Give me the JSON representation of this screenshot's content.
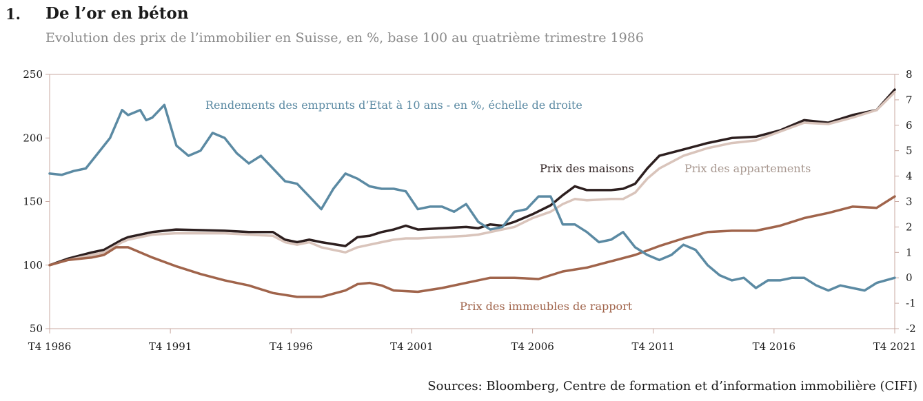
{
  "header": {
    "number": "1.",
    "title": "De l’or en béton",
    "subtitle": "Evolution des prix de l’immobilier en Suisse, en %, base 100 au quatrième trimestre 1986"
  },
  "source": "Sources: Bloomberg, Centre de formation et d’information immobilière (CIFI)",
  "chart_data": {
    "type": "line",
    "title": "De l’or en béton",
    "subtitle": "Evolution des prix de l’immobilier en Suisse, en %, base 100 au quatrième trimestre 1986",
    "x_ticks": [
      "T4 1986",
      "T4 1991",
      "T4 1996",
      "T4 2001",
      "T4 2006",
      "T4 2011",
      "T4 2016",
      "T4 2021"
    ],
    "x_range": [
      1986.75,
      2021.75
    ],
    "ylim_left": [
      50,
      250
    ],
    "yticks_left": [
      50,
      100,
      150,
      200,
      250
    ],
    "ylim_right": [
      -2,
      8
    ],
    "yticks_right": [
      -2,
      -1,
      0,
      1,
      2,
      3,
      4,
      5,
      6,
      7,
      8
    ],
    "grid": false,
    "series": [
      {
        "name": "Prix des maisons",
        "axis": "left",
        "color": "#2d1f1f",
        "x": [
          1986.75,
          1987.5,
          1988.5,
          1989.0,
          1989.75,
          1990.0,
          1991.0,
          1992.0,
          1994.0,
          1995.0,
          1996.0,
          1996.5,
          1997.0,
          1997.5,
          1998.0,
          1999.0,
          1999.5,
          2000.0,
          2000.5,
          2001.0,
          2001.5,
          2002.0,
          2003.0,
          2004.0,
          2004.5,
          2005.0,
          2005.5,
          2006.0,
          2006.75,
          2007.5,
          2008.0,
          2008.5,
          2009.0,
          2010.0,
          2010.5,
          2011.0,
          2011.5,
          2012.0,
          2013.0,
          2014.0,
          2015.0,
          2016.0,
          2017.0,
          2018.0,
          2019.0,
          2020.0,
          2021.0,
          2021.75
        ],
        "values": [
          100,
          105,
          110,
          112,
          120,
          122,
          126,
          128,
          127,
          126,
          126,
          120,
          118,
          120,
          118,
          115,
          122,
          123,
          126,
          128,
          131,
          128,
          129,
          130,
          129,
          132,
          131,
          134,
          140,
          147,
          155,
          162,
          159,
          159,
          160,
          164,
          176,
          186,
          191,
          196,
          200,
          201,
          206,
          214,
          212,
          218,
          222,
          238
        ]
      },
      {
        "name": "Prix des appartements",
        "axis": "left",
        "color": "#d9c4bb",
        "x": [
          1986.75,
          1987.5,
          1988.5,
          1989.0,
          1989.75,
          1990.0,
          1991.0,
          1992.0,
          1994.0,
          1995.0,
          1996.0,
          1996.5,
          1997.0,
          1997.5,
          1998.0,
          1999.0,
          1999.5,
          2000.0,
          2000.5,
          2001.0,
          2001.5,
          2002.0,
          2003.0,
          2004.0,
          2004.5,
          2005.0,
          2005.5,
          2006.0,
          2006.75,
          2007.5,
          2008.0,
          2008.5,
          2009.0,
          2010.0,
          2010.5,
          2011.0,
          2011.5,
          2012.0,
          2013.0,
          2014.0,
          2015.0,
          2016.0,
          2017.0,
          2018.0,
          2019.0,
          2020.0,
          2021.0,
          2021.75
        ],
        "values": [
          100,
          104,
          108,
          110,
          118,
          120,
          124,
          125,
          125,
          124,
          123,
          118,
          116,
          118,
          114,
          110,
          114,
          116,
          118,
          120,
          121,
          121,
          122,
          123,
          124,
          126,
          128,
          130,
          137,
          142,
          148,
          152,
          151,
          152,
          152,
          157,
          168,
          176,
          186,
          192,
          196,
          198,
          205,
          212,
          211,
          216,
          222,
          236
        ]
      },
      {
        "name": "Prix des immeubles de rapport",
        "axis": "left",
        "color": "#a0644b",
        "x": [
          1986.75,
          1987.5,
          1988.5,
          1989.0,
          1989.5,
          1990.0,
          1991.0,
          1992.0,
          1993.0,
          1994.0,
          1995.0,
          1996.0,
          1997.0,
          1998.0,
          1999.0,
          1999.5,
          2000.0,
          2000.5,
          2001.0,
          2002.0,
          2003.0,
          2004.0,
          2005.0,
          2006.0,
          2007.0,
          2008.0,
          2009.0,
          2010.0,
          2011.0,
          2012.0,
          2013.0,
          2014.0,
          2015.0,
          2016.0,
          2017.0,
          2018.0,
          2019.0,
          2020.0,
          2021.0,
          2021.75
        ],
        "values": [
          100,
          104,
          106,
          108,
          114,
          114,
          106,
          99,
          93,
          88,
          84,
          78,
          75,
          75,
          80,
          85,
          86,
          84,
          80,
          79,
          82,
          86,
          90,
          90,
          89,
          95,
          98,
          103,
          108,
          115,
          121,
          126,
          127,
          127,
          131,
          137,
          141,
          146,
          145,
          154
        ]
      },
      {
        "name": "Rendements des emprunts d’Etat à 10 ans - en %, échelle de droite",
        "axis": "right",
        "color": "#5b8aa3",
        "x": [
          1986.75,
          1987.25,
          1987.75,
          1988.25,
          1988.75,
          1989.25,
          1989.75,
          1990.0,
          1990.5,
          1990.75,
          1991.0,
          1991.5,
          1992.0,
          1992.5,
          1993.0,
          1993.5,
          1994.0,
          1994.5,
          1995.0,
          1995.5,
          1996.0,
          1996.5,
          1997.0,
          1997.5,
          1998.0,
          1998.5,
          1999.0,
          1999.5,
          2000.0,
          2000.5,
          2001.0,
          2001.5,
          2002.0,
          2002.5,
          2003.0,
          2003.5,
          2004.0,
          2004.5,
          2005.0,
          2005.5,
          2006.0,
          2006.5,
          2007.0,
          2007.5,
          2008.0,
          2008.5,
          2009.0,
          2009.5,
          2010.0,
          2010.5,
          2011.0,
          2011.5,
          2012.0,
          2012.5,
          2013.0,
          2013.5,
          2014.0,
          2014.5,
          2015.0,
          2015.5,
          2016.0,
          2016.5,
          2017.0,
          2017.5,
          2018.0,
          2018.5,
          2019.0,
          2019.5,
          2020.0,
          2020.5,
          2021.0,
          2021.75
        ],
        "values": [
          4.1,
          4.05,
          4.2,
          4.3,
          4.9,
          5.5,
          6.6,
          6.4,
          6.6,
          6.2,
          6.3,
          6.8,
          5.2,
          4.8,
          5.0,
          5.7,
          5.5,
          4.9,
          4.5,
          4.8,
          4.3,
          3.8,
          3.7,
          3.2,
          2.7,
          3.5,
          4.1,
          3.9,
          3.6,
          3.5,
          3.5,
          3.4,
          2.7,
          2.8,
          2.8,
          2.6,
          2.9,
          2.2,
          1.9,
          2.0,
          2.6,
          2.7,
          3.2,
          3.2,
          2.1,
          2.1,
          1.8,
          1.4,
          1.5,
          1.8,
          1.2,
          0.9,
          0.7,
          0.9,
          1.3,
          1.1,
          0.5,
          0.1,
          -0.1,
          0.0,
          -0.4,
          -0.1,
          -0.1,
          0.0,
          0.0,
          -0.3,
          -0.5,
          -0.3,
          -0.4,
          -0.5,
          -0.2,
          0.0
        ]
      }
    ],
    "labels": [
      {
        "text": "Rendements des emprunts d’Etat à 10 ans - en %, échelle de droite",
        "color": "#5b8aa3"
      },
      {
        "text": "Prix des maisons",
        "color": "#2d1f1f"
      },
      {
        "text": "Prix des appartements",
        "color": "#a89890"
      },
      {
        "text": "Prix des immeubles de rapport",
        "color": "#a0644b"
      }
    ]
  }
}
